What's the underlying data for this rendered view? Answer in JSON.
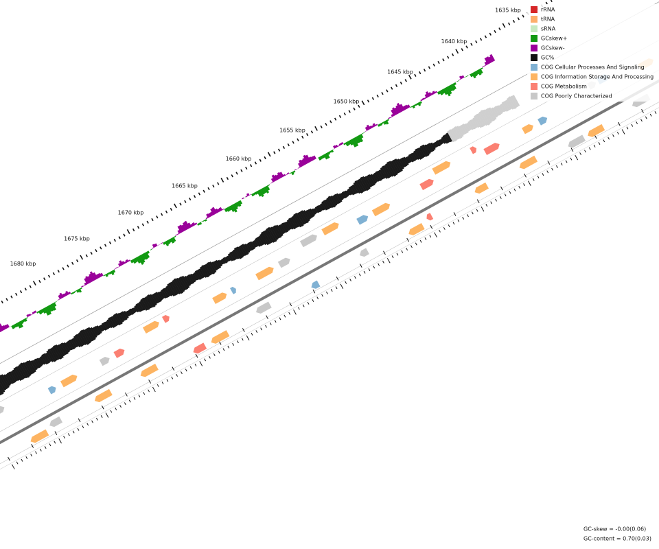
{
  "map": {
    "position_labels": [
      "1635 kbp",
      "1640 kbp",
      "1645 kbp",
      "1650 kbp",
      "1655 kbp",
      "1660 kbp",
      "1665 kbp",
      "1670 kbp",
      "1675 kbp",
      "1680 kbp"
    ]
  },
  "legend": {
    "items": [
      {
        "label": "rRNA",
        "color": "#d62728"
      },
      {
        "label": "tRNA",
        "color": "#fdae6b"
      },
      {
        "label": "sRNA",
        "color": "#c7e9c0"
      },
      {
        "label": "GCskew+",
        "color": "#119911"
      },
      {
        "label": "GCskew-",
        "color": "#990099"
      },
      {
        "label": "GC%",
        "color": "#111111"
      },
      {
        "label": "COG Cellular Processes And Signaling",
        "color": "#80b1d3"
      },
      {
        "label": "COG Information Storage And Processing",
        "color": "#fdb462"
      },
      {
        "label": "COG Metabolism",
        "color": "#fb8072"
      },
      {
        "label": "COG Poorly Characterized",
        "color": "#c8c8c8"
      }
    ]
  },
  "footer": {
    "gc_skew": "GC-skew = -0.00(0.06)",
    "gc_content": "GC-content = 0.70(0.03)"
  }
}
